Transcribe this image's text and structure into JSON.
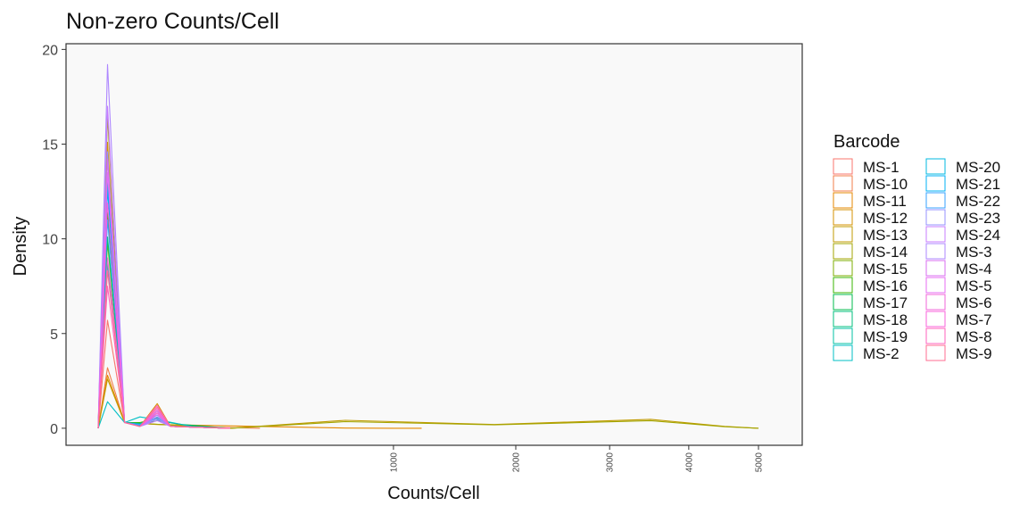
{
  "chart_data": {
    "type": "line",
    "title": "Non-zero Counts/Cell",
    "xlabel": "Counts/Cell",
    "ylabel": "Density",
    "x_scale": "sqrt",
    "xlim": [
      0,
      5400
    ],
    "ylim": [
      -0.9,
      20.3
    ],
    "yticks": [
      0,
      5,
      10,
      15,
      20
    ],
    "xticks": [
      1000,
      2000,
      3000,
      4000,
      5000
    ],
    "panel_background": "#f9f9f9",
    "grid": false,
    "legend": {
      "title": "Barcode",
      "position": "right",
      "columns": 2
    },
    "series": [
      {
        "name": "MS-1",
        "color": "#F8766D",
        "peak_x": 1,
        "peak_y": 5.7,
        "tail": [
          [
            20,
            0.15
          ],
          [
            40,
            0.8
          ],
          [
            60,
            0.1
          ],
          [
            200,
            0
          ]
        ]
      },
      {
        "name": "MS-10",
        "color": "#F07E4A",
        "peak_x": 1,
        "peak_y": 3.2,
        "tail": [
          [
            20,
            0.1
          ],
          [
            40,
            0.6
          ],
          [
            60,
            0.1
          ],
          [
            300,
            0
          ]
        ]
      },
      {
        "name": "MS-11",
        "color": "#E58700",
        "peak_x": 1,
        "peak_y": 2.8,
        "tail": [
          [
            40,
            0.2
          ],
          [
            700,
            0.01
          ],
          [
            1000,
            0
          ],
          [
            1200,
            0
          ]
        ]
      },
      {
        "name": "MS-12",
        "color": "#D59100",
        "peak_x": 1,
        "peak_y": 15.1,
        "tail": [
          [
            20,
            0.1
          ],
          [
            40,
            1.3
          ],
          [
            60,
            0.1
          ],
          [
            200,
            0
          ]
        ]
      },
      {
        "name": "MS-13",
        "color": "#C09B00",
        "peak_x": 1,
        "peak_y": 2.6,
        "tail": [
          [
            200,
            0
          ],
          [
            700,
            0.42
          ],
          [
            1800,
            0.2
          ],
          [
            3500,
            0.47
          ],
          [
            4500,
            0.1
          ],
          [
            5000,
            0
          ]
        ]
      },
      {
        "name": "MS-14",
        "color": "#A3A500",
        "peak_x": 1,
        "peak_y": 16.5,
        "tail": [
          [
            200,
            0
          ],
          [
            700,
            0.35
          ],
          [
            1800,
            0.18
          ],
          [
            3500,
            0.4
          ],
          [
            4500,
            0.08
          ],
          [
            5000,
            0
          ]
        ]
      },
      {
        "name": "MS-15",
        "color": "#7CAE00",
        "peak_x": 1,
        "peak_y": 9.8,
        "tail": [
          [
            20,
            0.1
          ],
          [
            40,
            0.9
          ],
          [
            60,
            0.1
          ],
          [
            200,
            0
          ]
        ]
      },
      {
        "name": "MS-16",
        "color": "#39B600",
        "peak_x": 1,
        "peak_y": 11.4,
        "tail": [
          [
            20,
            0.3
          ],
          [
            40,
            0.5
          ],
          [
            60,
            0.1
          ],
          [
            200,
            0
          ]
        ]
      },
      {
        "name": "MS-17",
        "color": "#00BB4E",
        "peak_x": 1,
        "peak_y": 12.9,
        "tail": [
          [
            20,
            0.2
          ],
          [
            40,
            0.4
          ],
          [
            80,
            0.2
          ],
          [
            200,
            0
          ]
        ]
      },
      {
        "name": "MS-18",
        "color": "#00BF7D",
        "peak_x": 1,
        "peak_y": 10.1,
        "tail": [
          [
            20,
            0.25
          ],
          [
            40,
            0.55
          ],
          [
            60,
            0.1
          ],
          [
            200,
            0
          ]
        ]
      },
      {
        "name": "MS-19",
        "color": "#00C1A3",
        "peak_x": 1,
        "peak_y": 8.7,
        "tail": [
          [
            20,
            0.2
          ],
          [
            40,
            0.5
          ],
          [
            60,
            0.1
          ],
          [
            200,
            0
          ]
        ]
      },
      {
        "name": "MS-2",
        "color": "#00BFC4",
        "peak_x": 1,
        "peak_y": 1.4,
        "tail": [
          [
            20,
            0.6
          ],
          [
            40,
            0.45
          ],
          [
            100,
            0.1
          ],
          [
            200,
            0
          ]
        ]
      },
      {
        "name": "MS-20",
        "color": "#00BAE0",
        "peak_x": 1,
        "peak_y": 13.0,
        "tail": [
          [
            20,
            0.15
          ],
          [
            40,
            0.6
          ],
          [
            60,
            0.1
          ],
          [
            200,
            0
          ]
        ]
      },
      {
        "name": "MS-21",
        "color": "#00B0F6",
        "peak_x": 1,
        "peak_y": 12.6,
        "tail": [
          [
            20,
            0.2
          ],
          [
            40,
            0.7
          ],
          [
            60,
            0.1
          ],
          [
            200,
            0
          ]
        ]
      },
      {
        "name": "MS-22",
        "color": "#35A2FF",
        "peak_x": 1,
        "peak_y": 11.0,
        "tail": [
          [
            20,
            0.2
          ],
          [
            40,
            0.5
          ],
          [
            60,
            0.1
          ],
          [
            200,
            0
          ]
        ]
      },
      {
        "name": "MS-23",
        "color": "#9590FF",
        "peak_x": 1,
        "peak_y": 14.6,
        "tail": [
          [
            20,
            0.1
          ],
          [
            40,
            0.6
          ],
          [
            60,
            0.1
          ],
          [
            200,
            0
          ]
        ]
      },
      {
        "name": "MS-24",
        "color": "#C77CFF",
        "peak_x": 1,
        "peak_y": 17.0,
        "tail": [
          [
            20,
            0.1
          ],
          [
            40,
            0.4
          ],
          [
            60,
            0.1
          ],
          [
            200,
            0
          ]
        ]
      },
      {
        "name": "MS-3",
        "color": "#AE87FF",
        "peak_x": 1,
        "peak_y": 19.2,
        "tail": [
          [
            20,
            0.1
          ],
          [
            40,
            0.5
          ],
          [
            60,
            0.1
          ],
          [
            200,
            0
          ]
        ]
      },
      {
        "name": "MS-4",
        "color": "#D86EF0",
        "peak_x": 1,
        "peak_y": 14.2,
        "tail": [
          [
            20,
            0.1
          ],
          [
            40,
            0.7
          ],
          [
            60,
            0.1
          ],
          [
            200,
            0
          ]
        ]
      },
      {
        "name": "MS-5",
        "color": "#E76BF3",
        "peak_x": 1,
        "peak_y": 13.5,
        "tail": [
          [
            20,
            0.1
          ],
          [
            40,
            0.9
          ],
          [
            60,
            0.1
          ],
          [
            200,
            0
          ]
        ]
      },
      {
        "name": "MS-6",
        "color": "#F066D9",
        "peak_x": 1,
        "peak_y": 9.0,
        "tail": [
          [
            20,
            0.1
          ],
          [
            40,
            1.0
          ],
          [
            60,
            0.1
          ],
          [
            200,
            0
          ]
        ]
      },
      {
        "name": "MS-7",
        "color": "#FA62DB",
        "peak_x": 1,
        "peak_y": 11.9,
        "tail": [
          [
            20,
            0.1
          ],
          [
            40,
            0.8
          ],
          [
            60,
            0.1
          ],
          [
            200,
            0
          ]
        ]
      },
      {
        "name": "MS-8",
        "color": "#FF62BC",
        "peak_x": 1,
        "peak_y": 7.5,
        "tail": [
          [
            20,
            0.1
          ],
          [
            40,
            1.2
          ],
          [
            60,
            0.1
          ],
          [
            200,
            0
          ]
        ]
      },
      {
        "name": "MS-9",
        "color": "#FF6C91",
        "peak_x": 1,
        "peak_y": 8.3,
        "tail": [
          [
            20,
            0.1
          ],
          [
            40,
            1.1
          ],
          [
            60,
            0.1
          ],
          [
            200,
            0
          ]
        ]
      }
    ]
  }
}
